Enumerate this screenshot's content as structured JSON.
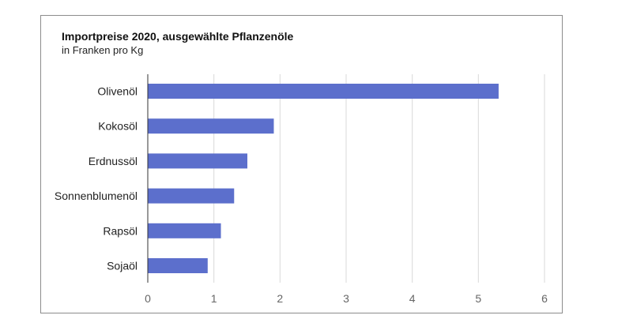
{
  "chart_data": {
    "type": "bar",
    "orientation": "horizontal",
    "title": "Importpreise 2020, ausgewählte Pflanzenöle",
    "subtitle": "in Franken pro Kg",
    "categories": [
      "Olivenöl",
      "Kokosöl",
      "Erdnussöl",
      "Sonnenblumenöl",
      "Rapsöl",
      "Sojaöl"
    ],
    "values": [
      5.3,
      1.9,
      1.5,
      1.3,
      1.1,
      0.9
    ],
    "xlim": [
      0,
      6
    ],
    "x_ticks": [
      "0",
      "1",
      "2",
      "3",
      "4",
      "5",
      "6"
    ],
    "grid": true,
    "bar_color": "#5c6fcc",
    "grid_color": "#d9d9d9"
  }
}
